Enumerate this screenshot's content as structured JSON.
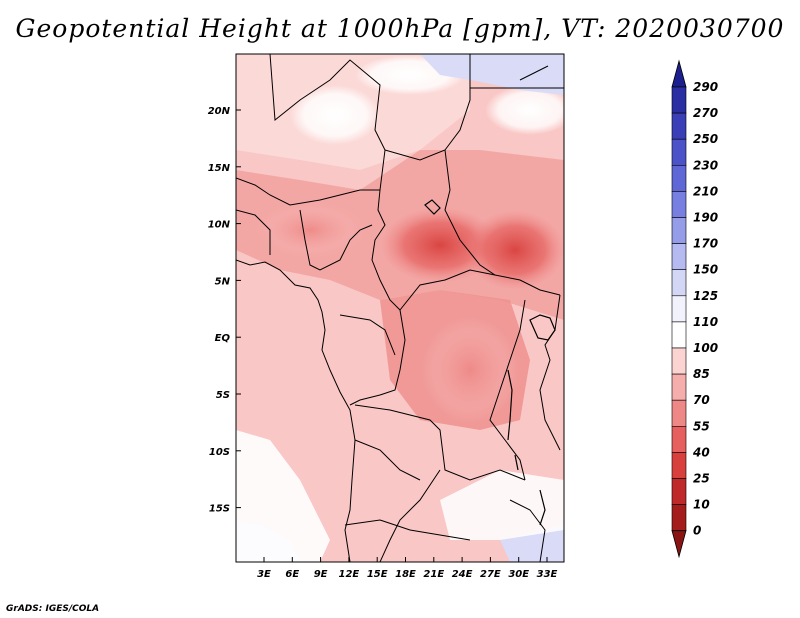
{
  "title": "Geopotential Height at 1000hPa [gpm], VT: 2020030700",
  "credit": "GrADS: IGES/COLA",
  "map": {
    "region": "Central Africa",
    "lat_labels": [
      "20N",
      "15N",
      "10N",
      "5N",
      "EQ",
      "5S",
      "10S",
      "15S"
    ],
    "lon_labels": [
      "3E",
      "6E",
      "9E",
      "12E",
      "15E",
      "18E",
      "21E",
      "24E",
      "27E",
      "30E",
      "33E"
    ]
  },
  "colorbar": {
    "levels": [
      "290",
      "270",
      "250",
      "230",
      "210",
      "190",
      "170",
      "150",
      "125",
      "110",
      "100",
      "85",
      "70",
      "55",
      "40",
      "25",
      "10",
      "0"
    ],
    "colors": [
      "#1c1f8e",
      "#2a2ea3",
      "#3a3fb7",
      "#4c53c8",
      "#5f67d6",
      "#7780e0",
      "#959ce8",
      "#b5baf0",
      "#d4d6f6",
      "#f2f2fc",
      "#ffffff",
      "#fbd4d2",
      "#f5aeac",
      "#ee8886",
      "#e5605e",
      "#d8403d",
      "#c0292a",
      "#a41c1c",
      "#8a1414"
    ]
  }
}
